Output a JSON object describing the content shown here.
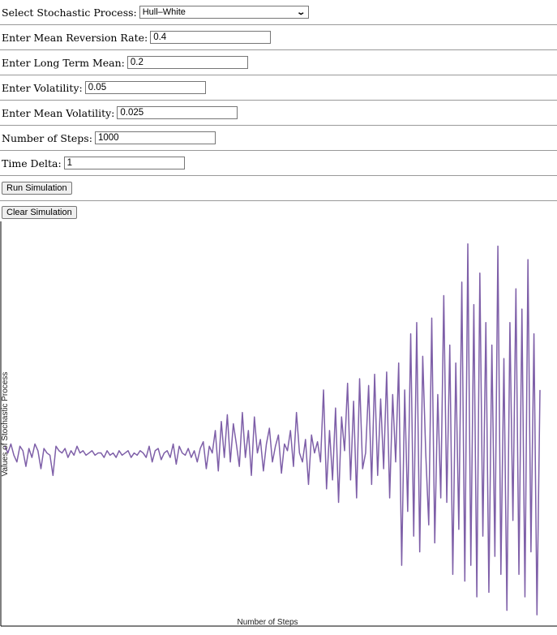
{
  "form": {
    "process": {
      "label": "Select Stochastic Process:",
      "selected": "Hull–White"
    },
    "mean_reversion": {
      "label": "Enter Mean Reversion Rate:",
      "value": "0.4"
    },
    "long_term_mean": {
      "label": "Enter Long Term Mean:",
      "value": "0.2"
    },
    "volatility": {
      "label": "Enter Volatility:",
      "value": "0.05"
    },
    "mean_volatility": {
      "label": "Enter Mean Volatility:",
      "value": "0.025"
    },
    "steps": {
      "label": "Number of Steps:",
      "value": "1000"
    },
    "time_delta": {
      "label": "Time Delta:",
      "value": "1"
    }
  },
  "buttons": {
    "run": "Run Simulation",
    "clear": "Clear Simulation"
  },
  "chart_data": {
    "type": "line",
    "xlabel": "Number of Steps",
    "ylabel": "Values of Stochastic Process",
    "xlim": [
      0,
      1000
    ],
    "ylim": [
      -0.75,
      1.05
    ],
    "grid": false,
    "line_color": "#7e5fa8",
    "series": [
      {
        "values": [
          0.05,
          0.02,
          0.06,
          0.01,
          -0.02,
          0.05,
          0.03,
          -0.04,
          0.04,
          0.0,
          0.06,
          0.03,
          -0.05,
          0.04,
          0.02,
          0.01,
          -0.08,
          0.05,
          0.03,
          0.02,
          0.04,
          0.0,
          0.03,
          0.01,
          0.05,
          0.02,
          0.03,
          0.01,
          0.02,
          0.03,
          0.01,
          0.02,
          0.02,
          0.0,
          0.03,
          0.01,
          0.02,
          0.0,
          0.03,
          0.01,
          0.02,
          0.03,
          0.0,
          0.02,
          0.01,
          0.03,
          0.02,
          0.0,
          0.05,
          -0.02,
          0.03,
          0.04,
          -0.01,
          0.02,
          0.03,
          0.0,
          0.06,
          -0.03,
          0.05,
          0.02,
          0.01,
          0.04,
          0.0,
          0.03,
          -0.02,
          0.04,
          0.07,
          -0.05,
          0.05,
          0.02,
          0.12,
          -0.06,
          0.16,
          0.0,
          0.19,
          -0.02,
          0.15,
          0.06,
          -0.04,
          0.2,
          0.0,
          0.12,
          -0.08,
          0.18,
          0.02,
          0.08,
          -0.06,
          0.06,
          0.13,
          -0.02,
          0.05,
          0.1,
          -0.07,
          0.06,
          0.03,
          0.12,
          -0.04,
          0.2,
          0.02,
          -0.02,
          0.08,
          -0.12,
          0.1,
          0.02,
          0.07,
          -0.02,
          0.3,
          -0.14,
          0.12,
          -0.1,
          0.22,
          -0.2,
          0.18,
          0.03,
          0.33,
          -0.1,
          0.25,
          -0.18,
          0.35,
          -0.05,
          0.02,
          0.32,
          -0.12,
          0.37,
          -0.08,
          0.26,
          -0.05,
          0.38,
          -0.18,
          0.28,
          -0.02,
          0.42,
          -0.48,
          0.3,
          -0.24,
          0.55,
          -0.35,
          0.6,
          -0.42,
          0.45,
          0.02,
          -0.3,
          0.62,
          -0.38,
          0.28,
          -0.18,
          0.72,
          -0.2,
          0.5,
          -0.52,
          0.42,
          -0.32,
          0.78,
          -0.55,
          0.95,
          -0.48,
          0.68,
          -0.62,
          0.82,
          -0.35,
          0.6,
          -0.6,
          0.5,
          -0.44,
          0.94,
          -0.52,
          0.44,
          -0.68,
          0.6,
          -0.28,
          0.75,
          -0.52,
          0.66,
          -0.62,
          0.88,
          -0.42,
          0.55,
          -0.7,
          0.3
        ]
      }
    ]
  }
}
